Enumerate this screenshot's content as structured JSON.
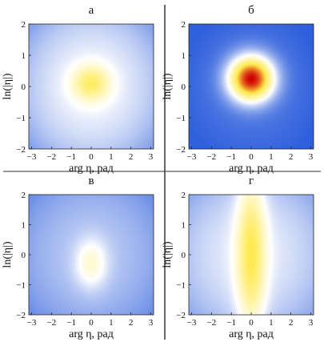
{
  "figure": {
    "divider_color": "#333333"
  },
  "chart_data": [
    {
      "type": "heatmap",
      "panel": "а",
      "xlabel": "arg η, рад",
      "ylabel": "ln(|η|)",
      "xlim": [
        -3.14,
        3.14
      ],
      "ylim": [
        -2,
        2
      ],
      "xticks": [
        "−3",
        "−2",
        "−1",
        "0",
        "1",
        "2",
        "3"
      ],
      "yticks": [
        "2",
        "1",
        "0",
        "−1",
        "−2"
      ],
      "colormap": [
        "#2e5fdc",
        "#ffffff",
        "#ffe94a",
        "#d10000"
      ],
      "peak": {
        "x": 0,
        "y": 0.1,
        "value": 0.62,
        "sx": 0.9,
        "sy": 0.55
      },
      "background": {
        "min": 0.32,
        "edge": 0.18
      }
    },
    {
      "type": "heatmap",
      "panel": "б",
      "xlabel": "arg η, рад",
      "ylabel": "ln(|η|)",
      "xlim": [
        -3.14,
        3.14
      ],
      "ylim": [
        -2,
        2
      ],
      "xticks": [
        "−3",
        "−2",
        "−1",
        "0",
        "1",
        "2",
        "3"
      ],
      "yticks": [
        "2",
        "1",
        "0",
        "−1",
        "−2"
      ],
      "colormap": [
        "#2e5fdc",
        "#ffffff",
        "#ffe94a",
        "#d10000"
      ],
      "peak": {
        "x": 0,
        "y": 0.25,
        "value": 1.0,
        "sx": 1.1,
        "sy": 0.7
      },
      "background": {
        "min": 0.05,
        "edge": 0.06
      }
    },
    {
      "type": "heatmap",
      "panel": "в",
      "xlabel": "arg η, рад",
      "ylabel": "ln(|η|)",
      "xlim": [
        -3.14,
        3.14
      ],
      "ylim": [
        -2,
        2
      ],
      "xticks": [
        "−3",
        "−2",
        "−1",
        "0",
        "1",
        "2",
        "3"
      ],
      "yticks": [
        "2",
        "1",
        "0",
        "−1",
        "−2"
      ],
      "colormap": [
        "#2e5fdc",
        "#ffffff",
        "#ffe94a",
        "#d10000"
      ],
      "peak": {
        "x": 0,
        "y": -0.3,
        "value": 0.42,
        "sx": 0.8,
        "sy": 0.8
      },
      "background": {
        "min": 0.22,
        "edge": 0.12
      }
    },
    {
      "type": "heatmap",
      "panel": "г",
      "xlabel": "arg η, рад",
      "ylabel": "ln(|η|)",
      "xlim": [
        -3.14,
        3.14
      ],
      "ylim": [
        -2,
        2
      ],
      "xticks": [
        "−3",
        "−2",
        "−1",
        "0",
        "1",
        "2",
        "3"
      ],
      "yticks": [
        "2",
        "1",
        "0",
        "−1",
        "−2"
      ],
      "colormap": [
        "#2e5fdc",
        "#ffffff",
        "#ffe94a",
        "#d10000"
      ],
      "peak": {
        "x": 0,
        "y": 0,
        "value": 0.66,
        "sx": 0.7,
        "sy": 2.6
      },
      "background": {
        "min": 0.3,
        "edge": 0.14
      }
    }
  ]
}
